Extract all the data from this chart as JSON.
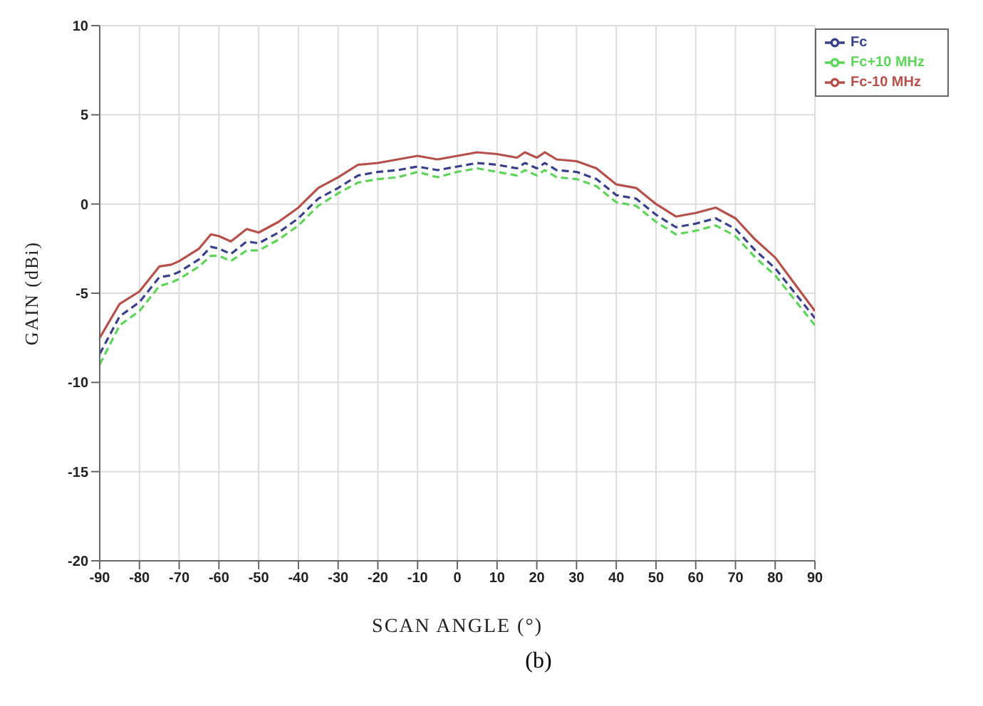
{
  "chart_data": {
    "type": "line",
    "xlabel": "SCAN ANGLE (°)",
    "ylabel": "GAIN (dBi)",
    "annotations": [
      "(b)"
    ],
    "x": [
      -90,
      -85,
      -80,
      -75,
      -72,
      -70,
      -65,
      -62,
      -60,
      -57,
      -53,
      -50,
      -45,
      -40,
      -35,
      -30,
      -25,
      -20,
      -15,
      -10,
      -5,
      0,
      5,
      10,
      15,
      17,
      20,
      22,
      25,
      30,
      35,
      40,
      45,
      50,
      55,
      60,
      65,
      70,
      75,
      80,
      85,
      90
    ],
    "series": [
      {
        "name": "Fc-10 MHz",
        "color": "#b5504a",
        "line_style": "solid",
        "values": [
          -7.5,
          -5.6,
          -4.9,
          -3.5,
          -3.4,
          -3.2,
          -2.5,
          -1.7,
          -1.8,
          -2.1,
          -1.4,
          -1.6,
          -1.0,
          -0.2,
          0.9,
          1.5,
          2.2,
          2.3,
          2.5,
          2.7,
          2.5,
          2.7,
          2.9,
          2.8,
          2.6,
          2.9,
          2.6,
          2.9,
          2.5,
          2.4,
          2.0,
          1.1,
          0.9,
          0.0,
          -0.7,
          -0.5,
          -0.2,
          -0.8,
          -2.0,
          -3.0,
          -4.5,
          -6.0
        ]
      },
      {
        "name": "Fc",
        "color": "#3a3f8a",
        "line_style": "dashed",
        "values": [
          -8.4,
          -6.3,
          -5.5,
          -4.1,
          -4.0,
          -3.8,
          -3.1,
          -2.4,
          -2.5,
          -2.8,
          -2.1,
          -2.2,
          -1.6,
          -0.8,
          0.3,
          0.9,
          1.6,
          1.8,
          1.9,
          2.1,
          1.9,
          2.1,
          2.3,
          2.2,
          2.0,
          2.3,
          2.0,
          2.3,
          1.9,
          1.8,
          1.4,
          0.5,
          0.3,
          -0.6,
          -1.3,
          -1.1,
          -0.8,
          -1.4,
          -2.6,
          -3.6,
          -5.0,
          -6.4
        ]
      },
      {
        "name": "Fc+10 MHz",
        "color": "#5fd45a",
        "line_style": "dashed",
        "values": [
          -9.0,
          -6.8,
          -6.0,
          -4.6,
          -4.4,
          -4.2,
          -3.5,
          -2.9,
          -2.9,
          -3.2,
          -2.6,
          -2.6,
          -2.0,
          -1.2,
          -0.1,
          0.6,
          1.2,
          1.4,
          1.5,
          1.8,
          1.5,
          1.8,
          2.0,
          1.8,
          1.6,
          1.9,
          1.6,
          1.9,
          1.5,
          1.4,
          1.0,
          0.1,
          -0.1,
          -1.0,
          -1.7,
          -1.5,
          -1.2,
          -1.8,
          -3.0,
          -4.0,
          -5.4,
          -6.8
        ]
      }
    ],
    "xlim": [
      -90,
      90
    ],
    "xticks": [
      -90,
      -80,
      -70,
      -60,
      -50,
      -40,
      -30,
      -20,
      -10,
      0,
      10,
      20,
      30,
      40,
      50,
      60,
      70,
      80,
      90
    ],
    "ylim": [
      -20,
      10
    ],
    "yticks": [
      -20,
      -15,
      -10,
      -5,
      0,
      5,
      10
    ],
    "grid": true,
    "legend": "top right",
    "marker": "none"
  }
}
